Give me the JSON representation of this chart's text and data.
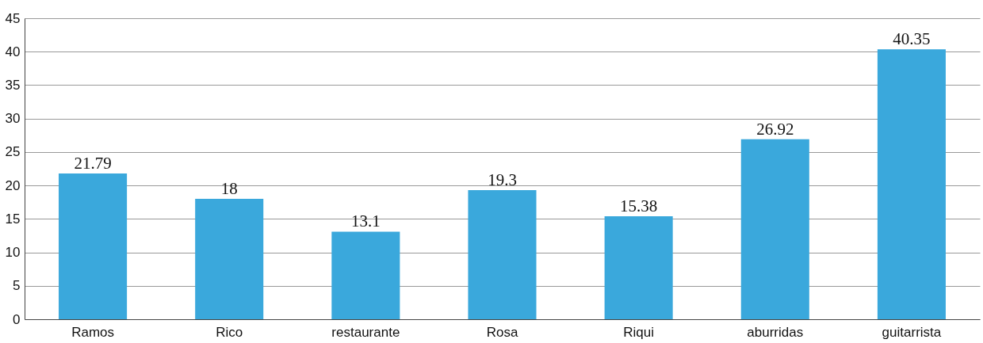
{
  "chart_data": {
    "type": "bar",
    "categories": [
      "Ramos",
      "Rico",
      "restaurante",
      "Rosa",
      "Riqui",
      "aburridas",
      "guitarrista"
    ],
    "values": [
      21.79,
      18,
      13.1,
      19.3,
      15.38,
      26.92,
      40.35
    ],
    "color": "#3aa8dc",
    "ylim": [
      0,
      45
    ],
    "yticks": [
      0,
      5,
      10,
      15,
      20,
      25,
      30,
      35,
      40,
      45
    ],
    "grid": "y",
    "data_labels": true
  }
}
